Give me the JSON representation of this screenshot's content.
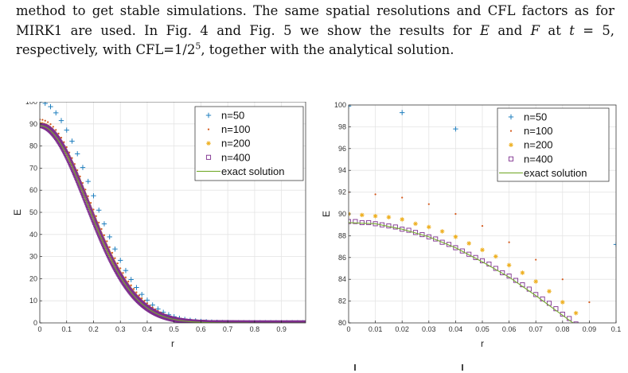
{
  "paragraph": {
    "s1": "method to get stable simulations. The same spatial resolutions and CFL factors as for MIRK1 are used. In Fig. 4 and Fig. 5 we show the results for ",
    "var_E": "E",
    "s2": " and ",
    "var_F": "F",
    "s3": " at ",
    "var_t": "t",
    "s4": " = 5, respectively, with CFL=1/2",
    "exp": "5",
    "s5": ", together with the analytical solution."
  },
  "colors": {
    "n50": "#1f7fbf",
    "n100": "#d4581a",
    "n200": "#eeb022",
    "n400": "#7e2f8e",
    "exact": "#77ac30",
    "grid": "#e4e4e4",
    "axis": "#262626"
  },
  "chart_data": [
    {
      "type": "scatter",
      "title": "",
      "xlabel": "r",
      "ylabel": "E",
      "xlim": [
        0,
        0.99
      ],
      "ylim": [
        0,
        100
      ],
      "xticks": [
        "0",
        "0.1",
        "0.2",
        "0.3",
        "0.4",
        "0.5",
        "0.6",
        "0.7",
        "0.8",
        "0.9"
      ],
      "yticks": [
        "0",
        "10",
        "20",
        "30",
        "40",
        "50",
        "60",
        "70",
        "80",
        "90",
        "100"
      ],
      "grid": true,
      "legend_position": "top-right",
      "legend": [
        "n=50",
        "n=100",
        "n=200",
        "n=400",
        "exact solution"
      ],
      "series": [
        {
          "name": "n=50",
          "marker": "plus",
          "x": [
            0,
            0.02,
            0.04,
            0.06,
            0.08,
            0.1,
            0.12,
            0.14,
            0.16,
            0.18,
            0.2,
            0.22,
            0.24,
            0.26,
            0.28,
            0.3,
            0.32,
            0.34,
            0.36,
            0.38,
            0.4,
            0.42,
            0.44,
            0.46,
            0.48,
            0.5,
            0.52,
            0.54,
            0.56,
            0.58,
            0.6,
            0.62,
            0.64,
            0.66,
            0.68,
            0.7,
            0.72,
            0.74,
            0.76,
            0.78,
            0.8,
            0.82,
            0.84,
            0.86,
            0.88,
            0.9,
            0.92,
            0.94,
            0.96,
            0.98
          ],
          "y": [
            99.9,
            99.3,
            97.8,
            95.0,
            91.5,
            87.2,
            82.2,
            76.5,
            70.3,
            64.0,
            57.5,
            51.0,
            44.8,
            38.9,
            33.4,
            28.3,
            23.7,
            19.6,
            16.0,
            12.9,
            10.3,
            8.1,
            6.3,
            4.8,
            3.7,
            2.8,
            2.1,
            1.6,
            1.2,
            0.9,
            0.7,
            0.5,
            0.4,
            0.3,
            0.2,
            0.2,
            0.1,
            0.1,
            0.1,
            0.1,
            0.1,
            0.1,
            0.1,
            0.1,
            0.1,
            0.1,
            0.1,
            0.1,
            0.1,
            0.1
          ]
        },
        {
          "name": "n=100",
          "marker": "dot",
          "curve": {
            "a": 92.0,
            "s": 0.185
          }
        },
        {
          "name": "n=200",
          "marker": "star",
          "curve": {
            "a": 90.0,
            "s": 0.179
          }
        },
        {
          "name": "n=400",
          "marker": "square",
          "curve": {
            "a": 89.3,
            "s": 0.176
          }
        },
        {
          "name": "exact solution",
          "marker": "line",
          "curve": {
            "a": 89.2,
            "s": 0.176
          }
        }
      ]
    },
    {
      "type": "scatter",
      "title": "",
      "xlabel": "r",
      "ylabel": "E",
      "xlim": [
        0,
        0.1
      ],
      "ylim": [
        80,
        100
      ],
      "xticks": [
        "0",
        "0.01",
        "0.02",
        "0.03",
        "0.04",
        "0.05",
        "0.06",
        "0.07",
        "0.08",
        "0.09",
        "0.1"
      ],
      "yticks": [
        "80",
        "82",
        "84",
        "86",
        "88",
        "90",
        "92",
        "94",
        "96",
        "98",
        "100"
      ],
      "grid": true,
      "legend_position": "top-right",
      "legend": [
        "n=50",
        "n=100",
        "n=200",
        "n=400",
        "exact solution"
      ],
      "series": [
        {
          "name": "n=50",
          "marker": "plus",
          "x": [
            0,
            0.02,
            0.04,
            0.1
          ],
          "y": [
            99.9,
            99.3,
            97.8,
            87.2
          ]
        },
        {
          "name": "n=100",
          "marker": "dot",
          "x": [
            0,
            0.01,
            0.02,
            0.03,
            0.04,
            0.05,
            0.06,
            0.07,
            0.08,
            0.09
          ],
          "y": [
            92.0,
            91.8,
            91.5,
            90.9,
            90.0,
            88.9,
            87.4,
            85.8,
            84.0,
            81.9
          ]
        },
        {
          "name": "n=200",
          "marker": "star",
          "x": [
            0,
            0.005,
            0.01,
            0.015,
            0.02,
            0.025,
            0.03,
            0.035,
            0.04,
            0.045,
            0.05,
            0.055,
            0.06,
            0.065,
            0.07,
            0.075,
            0.08,
            0.085
          ],
          "y": [
            90.0,
            89.9,
            89.8,
            89.7,
            89.5,
            89.1,
            88.8,
            88.4,
            87.9,
            87.3,
            86.7,
            86.1,
            85.3,
            84.6,
            83.8,
            82.9,
            81.9,
            80.9
          ]
        },
        {
          "name": "n=400",
          "marker": "square",
          "x": [
            0,
            0.0025,
            0.005,
            0.0075,
            0.01,
            0.0125,
            0.015,
            0.0175,
            0.02,
            0.0225,
            0.025,
            0.0275,
            0.03,
            0.0325,
            0.035,
            0.0375,
            0.04,
            0.0425,
            0.045,
            0.0475,
            0.05,
            0.0525,
            0.055,
            0.0575,
            0.06,
            0.0625,
            0.065,
            0.0675,
            0.07,
            0.0725,
            0.075,
            0.0775,
            0.08,
            0.0825,
            0.085
          ],
          "y": [
            89.3,
            89.3,
            89.2,
            89.2,
            89.1,
            89.0,
            88.9,
            88.8,
            88.6,
            88.5,
            88.3,
            88.1,
            87.9,
            87.7,
            87.4,
            87.2,
            86.9,
            86.6,
            86.3,
            86.0,
            85.7,
            85.4,
            85.0,
            84.6,
            84.3,
            83.9,
            83.5,
            83.1,
            82.6,
            82.2,
            81.8,
            81.3,
            80.8,
            80.4,
            79.9
          ]
        },
        {
          "name": "exact solution",
          "marker": "line",
          "x": [
            0,
            0.01,
            0.02,
            0.03,
            0.04,
            0.05,
            0.06,
            0.07,
            0.08,
            0.085
          ],
          "y": [
            89.2,
            89.1,
            88.6,
            87.9,
            86.9,
            85.6,
            84.2,
            82.5,
            80.7,
            79.8
          ]
        }
      ]
    }
  ]
}
